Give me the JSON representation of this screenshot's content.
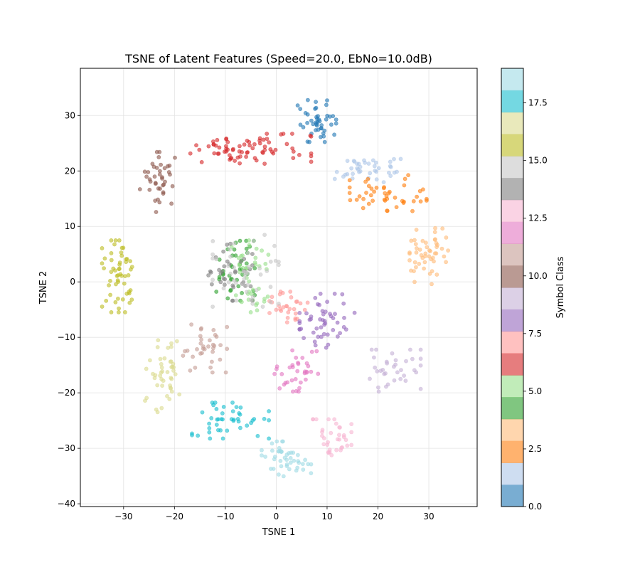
{
  "chart_data": {
    "type": "scatter",
    "title": "TSNE of Latent Features (Speed=20.0, EbNo=10.0dB)",
    "xlabel": "TSNE 1",
    "ylabel": "TSNE 2",
    "xlim": [
      -38.5,
      39.5
    ],
    "ylim": [
      -40.5,
      38.5
    ],
    "xticks": [
      -30,
      -20,
      -10,
      0,
      10,
      20,
      30
    ],
    "yticks": [
      -40,
      -30,
      -20,
      -10,
      0,
      10,
      20,
      30
    ],
    "grid": true,
    "colormap": "tab20",
    "colorbar": {
      "label": "Symbol Class",
      "range": [
        0,
        19
      ],
      "ticks": [
        "0.0",
        "2.5",
        "5.0",
        "7.5",
        "10.0",
        "12.5",
        "15.0",
        "17.5"
      ],
      "tick_values": [
        0,
        2.5,
        5,
        7.5,
        10,
        12.5,
        15,
        17.5
      ],
      "colors": [
        "#1f77b4",
        "#aec7e8",
        "#ff7f0e",
        "#ffbb78",
        "#2ca02c",
        "#98df8a",
        "#d62728",
        "#ff9896",
        "#9467bd",
        "#c5b0d5",
        "#8c564b",
        "#c49c94",
        "#e377c2",
        "#f7b6d2",
        "#7f7f7f",
        "#c7c7c7",
        "#bcbd22",
        "#dbdb8d",
        "#17becf",
        "#9edae5"
      ]
    },
    "point_alpha": 0.6,
    "clusters": [
      {
        "class": 0,
        "center": [
          8,
          29
        ],
        "spread": [
          3.5,
          3.5
        ],
        "n": 45
      },
      {
        "class": 1,
        "center": [
          18,
          20
        ],
        "spread": [
          6,
          2.5
        ],
        "n": 40
      },
      {
        "class": 2,
        "center": [
          22,
          16
        ],
        "spread": [
          7,
          3
        ],
        "n": 45
      },
      {
        "class": 3,
        "center": [
          30,
          5
        ],
        "spread": [
          3.5,
          5
        ],
        "n": 50
      },
      {
        "class": 4,
        "center": [
          -8,
          2
        ],
        "spread": [
          3.5,
          5
        ],
        "n": 40
      },
      {
        "class": 5,
        "center": [
          -5,
          1
        ],
        "spread": [
          3.5,
          6
        ],
        "n": 40
      },
      {
        "class": 6,
        "center": [
          -5,
          24
        ],
        "spread": [
          11,
          2.5
        ],
        "n": 75
      },
      {
        "class": 7,
        "center": [
          3,
          -5
        ],
        "spread": [
          4,
          3
        ],
        "n": 30
      },
      {
        "class": 8,
        "center": [
          10,
          -7
        ],
        "spread": [
          5,
          4.5
        ],
        "n": 50
      },
      {
        "class": 9,
        "center": [
          23,
          -16
        ],
        "spread": [
          5,
          3.5
        ],
        "n": 35
      },
      {
        "class": 10,
        "center": [
          -23,
          18
        ],
        "spread": [
          3.5,
          5
        ],
        "n": 40
      },
      {
        "class": 11,
        "center": [
          -14,
          -12
        ],
        "spread": [
          4,
          4
        ],
        "n": 35
      },
      {
        "class": 12,
        "center": [
          4,
          -16
        ],
        "spread": [
          4,
          3.5
        ],
        "n": 35
      },
      {
        "class": 13,
        "center": [
          11,
          -28
        ],
        "spread": [
          3.5,
          3
        ],
        "n": 35
      },
      {
        "class": 14,
        "center": [
          -9,
          2
        ],
        "spread": [
          4,
          5
        ],
        "n": 35
      },
      {
        "class": 15,
        "center": [
          -6,
          2
        ],
        "spread": [
          6,
          6
        ],
        "n": 45
      },
      {
        "class": 16,
        "center": [
          -31,
          1
        ],
        "spread": [
          3,
          6
        ],
        "n": 55
      },
      {
        "class": 17,
        "center": [
          -22,
          -17
        ],
        "spread": [
          3.5,
          6
        ],
        "n": 45
      },
      {
        "class": 18,
        "center": [
          -9,
          -25
        ],
        "spread": [
          7,
          3
        ],
        "n": 45
      },
      {
        "class": 19,
        "center": [
          2,
          -32
        ],
        "spread": [
          4.5,
          3
        ],
        "n": 45
      }
    ]
  }
}
